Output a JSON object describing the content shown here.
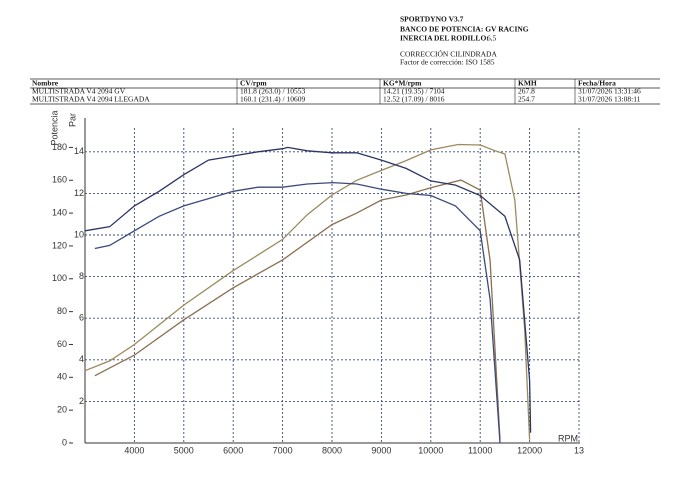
{
  "header": {
    "program": "SPORTDYNO V3.7",
    "bench": "BANCO DE POTENCIA: GV RACING",
    "inertia_label": "INERCIA DEL RODILLO:",
    "inertia": "6,5",
    "correction": "CORRECCIÓN CILINDRADA",
    "factor": "Factor de corrección: ISO 1585"
  },
  "table": {
    "columns": [
      "Nombre",
      "CV/rpm",
      "KG*M/rpm",
      "KMH",
      "Fecha/Hora"
    ],
    "rows": [
      [
        "MULTISTRADA V4 2094 GV",
        "181.8 (263.0) / 10553",
        "14.21 (19.35) / 7104",
        "267.8",
        "31/07/2026 13:31:46"
      ],
      [
        "MULTISTRADA V4 2094 LLEGADA",
        "160.1 (231.4) / 10609",
        "12.52 (17.09) / 8016",
        "254.7",
        "31/07/2026 13:08:11"
      ]
    ]
  },
  "chart_data": {
    "type": "line",
    "y_label": "Potencia",
    "y2_label": "Par",
    "x_label": "RPM",
    "xlim": [
      3000,
      13000
    ],
    "xticks": [
      4000,
      5000,
      6000,
      7000,
      8000,
      9000,
      10000,
      11000,
      12000,
      {
        "value": 13000,
        "label": "13"
      }
    ],
    "ylim": [
      0,
      190
    ],
    "yticks": [
      0,
      20,
      40,
      60,
      80,
      100,
      120,
      140,
      160,
      180
    ],
    "y2lim": [
      0,
      15
    ],
    "y2ticks": [
      2,
      4,
      6,
      8,
      10,
      12,
      14
    ],
    "grid": true,
    "series": [
      {
        "color": "#9c8a5c",
        "x": [
          3000,
          3500,
          4000,
          5000,
          6000,
          7000,
          7500,
          8000,
          8500,
          9000,
          9500,
          10000,
          10553,
          11000,
          11300,
          11500,
          11700,
          11900,
          12000
        ],
        "values": [
          44,
          50,
          60,
          84,
          105,
          124,
          139,
          151,
          160,
          166,
          172,
          178.5,
          181.8,
          181.5,
          178,
          176,
          148,
          69,
          2
        ]
      },
      {
        "color": "#8a6f50",
        "x": [
          3200,
          4000,
          5000,
          6000,
          7000,
          8000,
          8500,
          9000,
          9500,
          10000,
          10609,
          11000,
          11200,
          11400
        ],
        "values": [
          41,
          53.5,
          75,
          94.5,
          111.5,
          133,
          140,
          148,
          151,
          155.5,
          160.1,
          154,
          111,
          2
        ]
      },
      {
        "color": "#2a3566",
        "axis": "y2",
        "x": [
          3000,
          3500,
          4000,
          4500,
          5000,
          5500,
          6000,
          6500,
          7000,
          7104,
          7500,
          8000,
          8500,
          9000,
          9500,
          10000,
          10500,
          11000,
          11500,
          11800,
          12000,
          12020
        ],
        "values": [
          10.2,
          10.4,
          11.4,
          12.1,
          12.9,
          13.6,
          13.8,
          14,
          14.15,
          14.21,
          14.05,
          13.95,
          13.95,
          13.6,
          13.2,
          12.6,
          12.4,
          11.9,
          10.9,
          8.8,
          3,
          0.5
        ]
      },
      {
        "color": "#3c4a7c",
        "axis": "y2",
        "x": [
          3200,
          3500,
          4000,
          4500,
          5000,
          5500,
          6000,
          6500,
          7000,
          7500,
          8016,
          8500,
          9000,
          9500,
          10000,
          10500,
          11000,
          11200,
          11400
        ],
        "values": [
          9.35,
          9.5,
          10.2,
          10.9,
          11.4,
          11.75,
          12.1,
          12.3,
          12.3,
          12.45,
          12.52,
          12.45,
          12.2,
          12,
          11.9,
          11.4,
          10.2,
          6.9,
          0
        ]
      }
    ]
  }
}
